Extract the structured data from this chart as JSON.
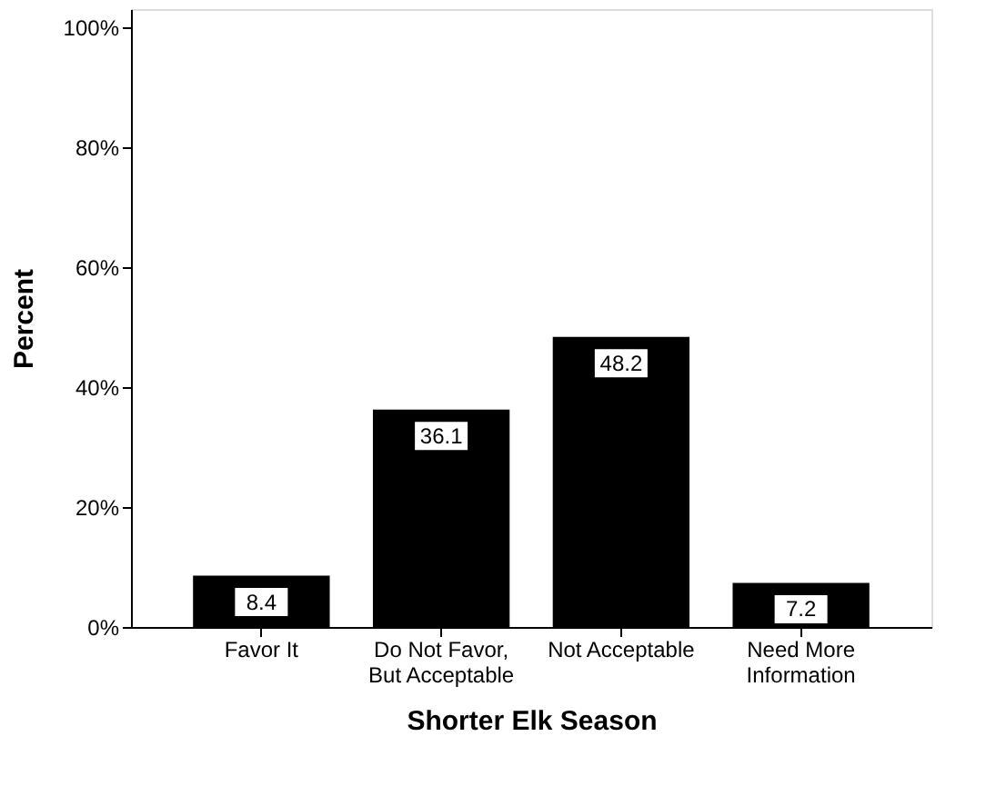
{
  "chart_data": {
    "type": "bar",
    "xlabel": "Shorter Elk Season",
    "ylabel": "Percent",
    "categories": [
      "Favor It",
      "Do Not Favor, But Acceptable",
      "Not Acceptable",
      "Need More Information"
    ],
    "values": [
      8.4,
      36.1,
      48.2,
      7.2
    ],
    "color": "#000000",
    "data_labels": true,
    "grid": false,
    "ylim": [
      0,
      103
    ],
    "yticks": [
      {
        "value": 0,
        "label": "0%"
      },
      {
        "value": 20,
        "label": "20%"
      },
      {
        "value": 40,
        "label": "40%"
      },
      {
        "value": 60,
        "label": "60%"
      },
      {
        "value": 80,
        "label": "80%"
      },
      {
        "value": 100,
        "label": "100%"
      }
    ]
  }
}
